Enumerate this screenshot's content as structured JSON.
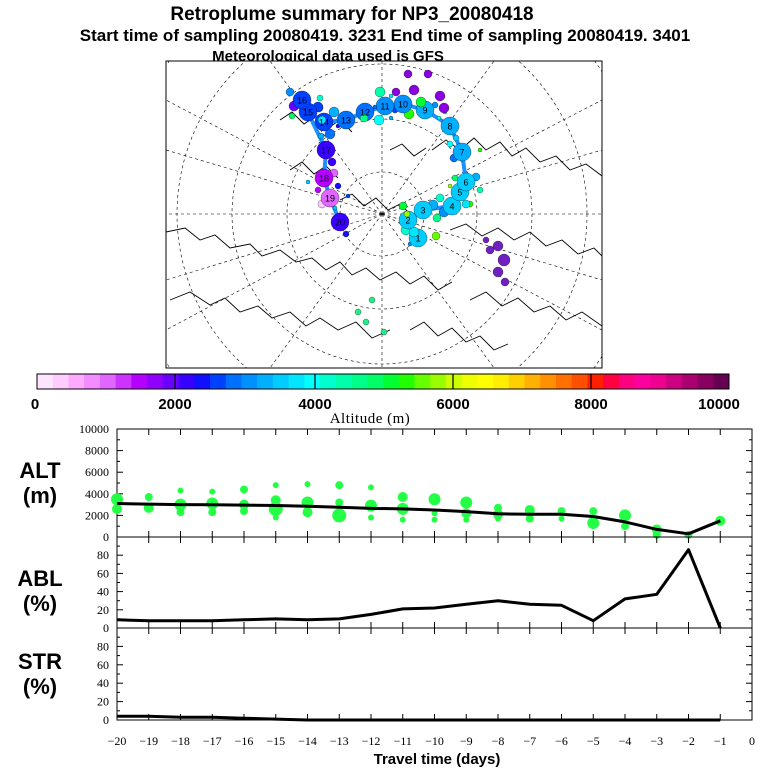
{
  "header": {
    "title": "Retroplume summary for NP3_20080418",
    "line2": "Start time of sampling 20080419.  3231     End time of sampling 20080419.  3401",
    "line3": "Meteorological data used is GFS"
  },
  "colorbar": {
    "label": "Altitude (m)",
    "tick_labels": [
      "0",
      "2000",
      "4000",
      "6000",
      "8000",
      "10000"
    ],
    "colors": [
      "#ffe4ff",
      "#ffccff",
      "#ffaaff",
      "#f28cff",
      "#e066ff",
      "#cc33ff",
      "#b400ff",
      "#9000ff",
      "#6a00ff",
      "#3a00ff",
      "#1010ff",
      "#0040ff",
      "#0070ff",
      "#0090ff",
      "#00b0ff",
      "#00ccff",
      "#00e6ff",
      "#00ffff",
      "#00ffcc",
      "#00ffaa",
      "#00ff88",
      "#00ff66",
      "#00ff33",
      "#22ff00",
      "#66ff00",
      "#99ff00",
      "#ccff00",
      "#eeff00",
      "#ffff00",
      "#ffee00",
      "#ffd000",
      "#ffb000",
      "#ff9000",
      "#ff7000",
      "#ff5000",
      "#ff2000",
      "#ff0040",
      "#ff0080",
      "#ff00a0",
      "#ee0090",
      "#cc0080",
      "#aa0070",
      "#880060",
      "#660050"
    ]
  },
  "map": {
    "trajectory_labels": [
      "1",
      "2",
      "3",
      "4",
      "5",
      "6",
      "7",
      "8",
      "9",
      "10",
      "11",
      "12",
      "13",
      "14",
      "15",
      "16",
      "17",
      "18",
      "19",
      "20"
    ]
  },
  "chart_data": [
    {
      "type": "line",
      "panel": "ALT",
      "label_top": "ALT",
      "label_bottom": "(m)",
      "ylim": [
        0,
        10000
      ],
      "yticks": [
        "0",
        "2000",
        "4000",
        "6000",
        "8000",
        "10000"
      ],
      "x": [
        -20,
        -19,
        -18,
        -17,
        -16,
        -15,
        -14,
        -13,
        -12,
        -11,
        -10,
        -9,
        -8,
        -7,
        -6,
        -5,
        -4,
        -3,
        -2,
        -1
      ],
      "values": [
        3100,
        3050,
        3000,
        2980,
        2950,
        2920,
        2850,
        2750,
        2650,
        2600,
        2500,
        2350,
        2150,
        2100,
        2100,
        1900,
        1400,
        700,
        300,
        1500
      ],
      "scatter": {
        "color": "#22ff44",
        "points": [
          [
            -20,
            3500,
            6
          ],
          [
            -20,
            2600,
            5
          ],
          [
            -19,
            3700,
            4
          ],
          [
            -19,
            2700,
            5
          ],
          [
            -18,
            4300,
            3
          ],
          [
            -18,
            3000,
            6
          ],
          [
            -18,
            2300,
            4
          ],
          [
            -17,
            4200,
            3
          ],
          [
            -17,
            3100,
            6
          ],
          [
            -17,
            2300,
            4
          ],
          [
            -16,
            4400,
            4
          ],
          [
            -16,
            3000,
            5
          ],
          [
            -16,
            2400,
            4
          ],
          [
            -15,
            4800,
            3
          ],
          [
            -15,
            3400,
            5
          ],
          [
            -15,
            2600,
            7
          ],
          [
            -15,
            1800,
            3
          ],
          [
            -14,
            4900,
            3
          ],
          [
            -14,
            3200,
            6
          ],
          [
            -14,
            2300,
            5
          ],
          [
            -13,
            4800,
            4
          ],
          [
            -13,
            3200,
            4
          ],
          [
            -13,
            2000,
            7
          ],
          [
            -12,
            4600,
            3
          ],
          [
            -12,
            2900,
            6
          ],
          [
            -12,
            1800,
            3
          ],
          [
            -11,
            3700,
            5
          ],
          [
            -11,
            2600,
            6
          ],
          [
            -11,
            1600,
            3
          ],
          [
            -10,
            3500,
            6
          ],
          [
            -10,
            2200,
            3
          ],
          [
            -10,
            1600,
            3
          ],
          [
            -9,
            3200,
            6
          ],
          [
            -9,
            2200,
            5
          ],
          [
            -9,
            1600,
            3
          ],
          [
            -8,
            2700,
            4
          ],
          [
            -8,
            2100,
            5
          ],
          [
            -8,
            1700,
            3
          ],
          [
            -7,
            2500,
            5
          ],
          [
            -7,
            1700,
            4
          ],
          [
            -6,
            2400,
            4
          ],
          [
            -6,
            1700,
            3
          ],
          [
            -5,
            2400,
            4
          ],
          [
            -5,
            1300,
            6
          ],
          [
            -4,
            2000,
            6
          ],
          [
            -4,
            1000,
            4
          ],
          [
            -3,
            700,
            5
          ],
          [
            -3,
            200,
            4
          ],
          [
            -2,
            200,
            4
          ],
          [
            -1,
            1500,
            5
          ]
        ]
      }
    },
    {
      "type": "line",
      "panel": "ABL",
      "label_top": "ABL",
      "label_bottom": "(%)",
      "ylim": [
        0,
        100
      ],
      "yticks": [
        "0",
        "20",
        "40",
        "60",
        "80"
      ],
      "x": [
        -20,
        -19,
        -18,
        -17,
        -16,
        -15,
        -14,
        -13,
        -12,
        -11,
        -10,
        -9,
        -8,
        -7,
        -6,
        -5,
        -4,
        -3,
        -2,
        -1
      ],
      "values": [
        9,
        8,
        8,
        8,
        9,
        10,
        9,
        10,
        15,
        21,
        22,
        26,
        30,
        26,
        25,
        8,
        32,
        37,
        86,
        0
      ]
    },
    {
      "type": "line",
      "panel": "STR",
      "label_top": "STR",
      "label_bottom": "(%)",
      "ylim": [
        0,
        100
      ],
      "yticks": [
        "0",
        "20",
        "40",
        "60",
        "80"
      ],
      "x": [
        -20,
        -19,
        -18,
        -17,
        -16,
        -15,
        -14,
        -13,
        -12,
        -11,
        -10,
        -9,
        -8,
        -7,
        -6,
        -5,
        -4,
        -3,
        -2,
        -1
      ],
      "values": [
        4,
        4,
        3,
        3,
        2,
        1,
        0,
        0,
        0,
        0,
        0,
        0,
        0,
        0,
        0,
        0,
        0,
        0,
        0,
        0
      ]
    }
  ],
  "xaxis": {
    "label": "Travel time (days)",
    "tick_labels": [
      "−20",
      "−19",
      "−18",
      "−17",
      "−16",
      "−15",
      "−14",
      "−13",
      "−12",
      "−11",
      "−10",
      "−9",
      "−8",
      "−7",
      "−6",
      "−5",
      "−4",
      "−3",
      "−2",
      "−1",
      "0"
    ]
  }
}
